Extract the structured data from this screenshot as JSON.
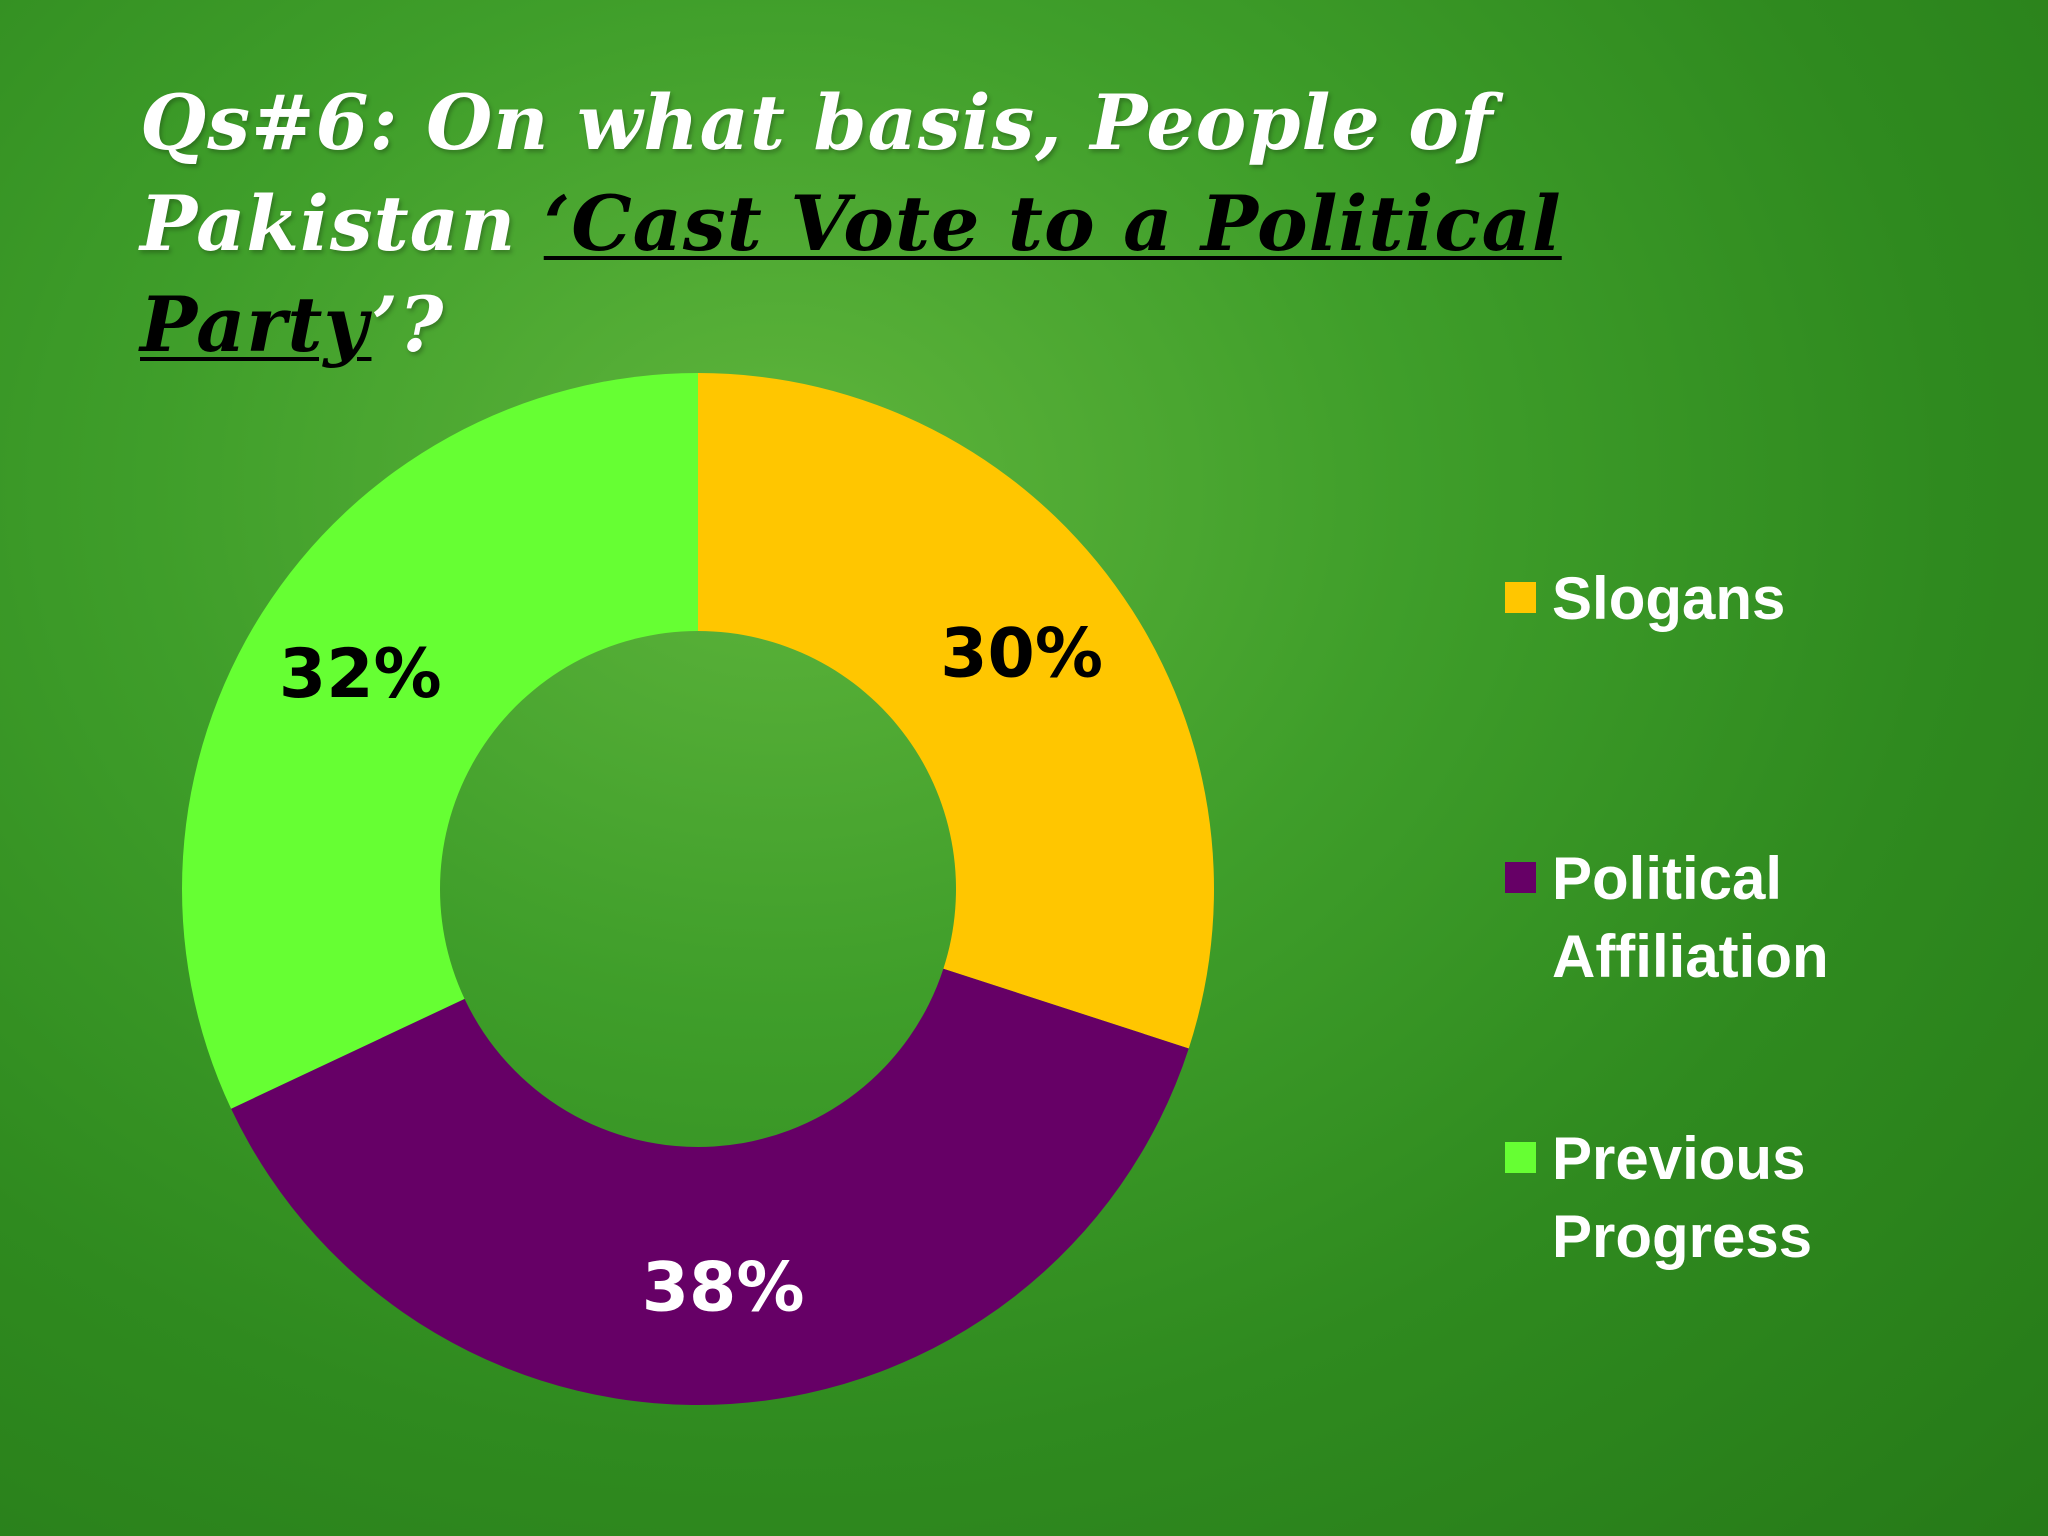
{
  "title": {
    "prefix": "Qs#6: On what basis, People of Pakistan ",
    "emphasis": "‘Cast Vote to a Political Party",
    "suffix": "’?"
  },
  "colors": {
    "slogans": "#FFC600",
    "political_affiliation": "#660066",
    "previous_progress": "#66FF33"
  },
  "chart_data": {
    "type": "pie",
    "subtype": "doughnut",
    "categories": [
      "Slogans",
      "Political Affiliation",
      "Previous Progress"
    ],
    "values": [
      30,
      38,
      32
    ],
    "data_labels": [
      "30%",
      "38%",
      "32%"
    ],
    "colors": [
      "#FFC600",
      "#660066",
      "#66FF33"
    ],
    "label_colors": [
      "#000000",
      "#ffffff",
      "#000000"
    ],
    "legend_position": "right"
  },
  "legend": {
    "items": [
      {
        "label": "Slogans",
        "color": "#FFC600"
      },
      {
        "label": "Political Affiliation",
        "color": "#660066"
      },
      {
        "label": "Previous Progress",
        "color": "#66FF33"
      }
    ]
  }
}
